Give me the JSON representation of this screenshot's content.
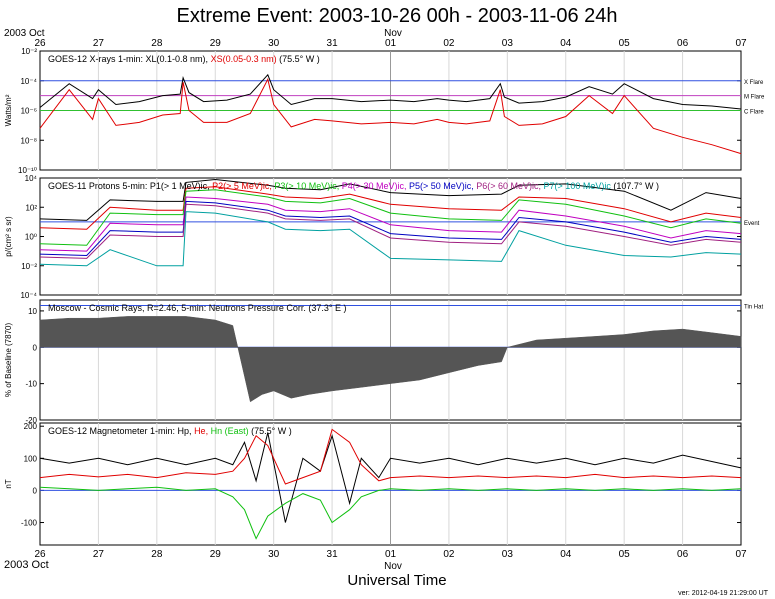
{
  "title": "Extreme Event: 2003-10-26 00h - 2003-11-06 24h",
  "top_left_label": "2003 Oct",
  "top_month_label": "Nov",
  "bottom_left_label": "2003 Oct",
  "bottom_month_label": "Nov",
  "xlabel": "Universal Time",
  "version": "ver: 2012-04-19 21:29:00 UT",
  "day_ticks": [
    "26",
    "27",
    "28",
    "29",
    "30",
    "31",
    "01",
    "02",
    "03",
    "04",
    "05",
    "06",
    "07"
  ],
  "chart_data": [
    {
      "type": "line",
      "panel": "xray",
      "title_parts": [
        {
          "text": "GOES-12 X-rays  1-min: XL(0.1-0.8 nm), ",
          "color": "#000000"
        },
        {
          "text": "XS(0.05-0.3 nm)",
          "color": "#e00000"
        },
        {
          "text": "  (75.5° W )",
          "color": "#000000"
        }
      ],
      "ylabel": "Watts/m²",
      "scale": "log",
      "ylim": [
        1e-10,
        0.01
      ],
      "yticks": [
        {
          "label": "10⁻²",
          "exp": -2
        },
        {
          "label": "10⁻⁴",
          "exp": -4
        },
        {
          "label": "10⁻⁶",
          "exp": -6
        },
        {
          "label": "10⁻⁸",
          "exp": -8
        },
        {
          "label": "10⁻¹⁰",
          "exp": -10
        }
      ],
      "thresholds": [
        {
          "label": "X Flare",
          "exp": -4,
          "color": "#3050e0"
        },
        {
          "label": "M Flare",
          "exp": -5,
          "color": "#c040c0"
        },
        {
          "label": "C Flare",
          "exp": -6,
          "color": "#30c030"
        }
      ],
      "series": [
        {
          "name": "XL",
          "color": "#000000",
          "x": [
            0,
            0.5,
            0.9,
            1.0,
            1.3,
            1.7,
            2.1,
            2.4,
            2.45,
            2.55,
            2.8,
            3.2,
            3.6,
            3.9,
            4.0,
            4.3,
            4.7,
            5.0,
            5.5,
            6.0,
            6.4,
            6.8,
            7.0,
            7.3,
            7.7,
            7.88,
            7.95,
            8.2,
            8.6,
            9.0,
            9.4,
            9.8,
            10.0,
            10.5,
            11.0,
            11.5,
            12.0
          ],
          "y": [
            -5.8,
            -4.2,
            -5.2,
            -4.6,
            -5.6,
            -5.4,
            -5.0,
            -4.9,
            -3.8,
            -4.8,
            -5.4,
            -5.3,
            -4.9,
            -3.6,
            -4.6,
            -5.6,
            -5.2,
            -5.2,
            -5.4,
            -5.3,
            -5.4,
            -5.2,
            -5.3,
            -5.4,
            -5.2,
            -4.2,
            -5.1,
            -5.5,
            -5.4,
            -5.1,
            -4.4,
            -4.9,
            -4.2,
            -5.2,
            -5.6,
            -5.7,
            -5.9
          ]
        },
        {
          "name": "XS",
          "color": "#e00000",
          "x": [
            0,
            0.5,
            0.9,
            1.0,
            1.3,
            1.7,
            2.1,
            2.4,
            2.45,
            2.55,
            2.8,
            3.2,
            3.6,
            3.9,
            4.0,
            4.3,
            4.7,
            5.0,
            5.5,
            6.0,
            6.4,
            6.8,
            7.0,
            7.3,
            7.7,
            7.88,
            7.95,
            8.2,
            8.6,
            9.0,
            9.4,
            9.8,
            10.0,
            10.5,
            11.0,
            11.5,
            12.0
          ],
          "y": [
            -7.2,
            -4.6,
            -6.6,
            -5.2,
            -7.0,
            -6.8,
            -6.3,
            -6.2,
            -4.1,
            -6.0,
            -6.8,
            -6.8,
            -6.2,
            -3.9,
            -5.6,
            -7.1,
            -6.6,
            -6.7,
            -6.9,
            -6.8,
            -6.9,
            -6.6,
            -6.8,
            -6.9,
            -6.7,
            -4.6,
            -6.4,
            -7.0,
            -6.9,
            -6.4,
            -5.0,
            -6.2,
            -5.0,
            -7.2,
            -7.8,
            -8.3,
            -8.9
          ]
        }
      ]
    },
    {
      "type": "line",
      "panel": "protons",
      "title_parts": [
        {
          "text": "GOES-11  Protons 5-min: P1(> 1 MeV)ic, ",
          "color": "#000000"
        },
        {
          "text": "P2(> 5 MeV)ic, ",
          "color": "#e00000"
        },
        {
          "text": "P3(> 10 MeV)ic, ",
          "color": "#10c010"
        },
        {
          "text": "P4(> 30 MeV)ic, ",
          "color": "#c000c0"
        },
        {
          "text": "P5(> 50 MeV)ic, ",
          "color": "#0000c0"
        },
        {
          "text": "P6(> 60 MeV)ic, ",
          "color": "#a02080"
        },
        {
          "text": "P7(> 100 MeV)ic",
          "color": "#00a0a0"
        },
        {
          "text": "  (107.7° W )",
          "color": "#000000"
        }
      ],
      "ylabel": "p/(cm² s sr)",
      "scale": "log",
      "ylim": [
        0.0001,
        10000.0
      ],
      "yticks": [
        {
          "label": "10⁴",
          "exp": 4
        },
        {
          "label": "10²",
          "exp": 2
        },
        {
          "label": "10⁰",
          "exp": 0
        },
        {
          "label": "10⁻²",
          "exp": -2
        },
        {
          "label": "10⁻⁴",
          "exp": -4
        }
      ],
      "thresholds": [
        {
          "label": "Event",
          "exp": 1,
          "color": "#3050e0"
        }
      ],
      "series": [
        {
          "name": "P1",
          "color": "#000000",
          "x": [
            0,
            0.8,
            1.2,
            2.0,
            2.45,
            2.5,
            3.0,
            3.9,
            4.2,
            4.8,
            5.3,
            6.0,
            7.0,
            7.9,
            8.2,
            9.0,
            10.0,
            10.8,
            11.4,
            12.0
          ],
          "y": [
            1.2,
            1.1,
            2.5,
            2.4,
            2.4,
            3.7,
            3.9,
            3.5,
            3.3,
            3.2,
            3.6,
            3.0,
            2.8,
            2.9,
            3.5,
            3.6,
            3.1,
            1.8,
            3.0,
            2.6
          ]
        },
        {
          "name": "P2",
          "color": "#e00000",
          "x": [
            0,
            0.8,
            1.2,
            2.0,
            2.45,
            2.5,
            3.0,
            3.9,
            4.2,
            4.8,
            5.3,
            6.0,
            7.0,
            7.9,
            8.2,
            9.0,
            10.0,
            10.8,
            11.4,
            12.0
          ],
          "y": [
            0.6,
            0.5,
            2.0,
            1.8,
            1.8,
            3.3,
            3.4,
            2.9,
            2.7,
            2.6,
            2.9,
            2.2,
            1.9,
            1.8,
            2.7,
            2.6,
            1.9,
            1.0,
            1.6,
            1.3
          ]
        },
        {
          "name": "P3",
          "color": "#10c010",
          "x": [
            0,
            0.8,
            1.2,
            2.0,
            2.45,
            2.5,
            3.0,
            3.9,
            4.2,
            4.8,
            5.3,
            6.0,
            7.0,
            7.9,
            8.2,
            9.0,
            10.0,
            10.8,
            11.4,
            12.0
          ],
          "y": [
            -0.5,
            -0.6,
            1.6,
            1.5,
            1.5,
            3.1,
            3.2,
            2.7,
            2.4,
            2.3,
            2.6,
            1.6,
            1.2,
            1.1,
            2.5,
            2.2,
            1.4,
            0.6,
            1.2,
            0.9
          ]
        },
        {
          "name": "P4",
          "color": "#c000c0",
          "x": [
            0,
            0.8,
            1.2,
            2.0,
            2.45,
            2.5,
            3.0,
            3.9,
            4.2,
            4.8,
            5.3,
            6.0,
            7.0,
            7.9,
            8.2,
            9.0,
            10.0,
            10.8,
            11.4,
            12.0
          ],
          "y": [
            -0.9,
            -1.0,
            0.9,
            0.8,
            0.8,
            2.7,
            2.6,
            2.2,
            1.8,
            1.7,
            1.9,
            0.8,
            0.4,
            0.3,
            1.8,
            1.4,
            0.7,
            -0.1,
            0.4,
            0.2
          ]
        },
        {
          "name": "P5",
          "color": "#0000c0",
          "x": [
            0,
            0.8,
            1.2,
            2.0,
            2.45,
            2.5,
            3.0,
            3.9,
            4.2,
            4.8,
            5.3,
            6.0,
            7.0,
            7.9,
            8.2,
            9.0,
            10.0,
            10.8,
            11.4,
            12.0
          ],
          "y": [
            -1.2,
            -1.3,
            0.4,
            0.3,
            0.3,
            2.4,
            2.3,
            1.8,
            1.4,
            1.3,
            1.4,
            0.2,
            -0.1,
            -0.2,
            1.3,
            1.0,
            0.3,
            -0.4,
            0.0,
            -0.2
          ]
        },
        {
          "name": "P6",
          "color": "#a02080",
          "x": [
            0,
            0.8,
            1.2,
            2.0,
            2.45,
            2.5,
            3.0,
            3.9,
            4.2,
            4.8,
            5.3,
            6.0,
            7.0,
            7.9,
            8.2,
            9.0,
            10.0,
            10.8,
            11.4,
            12.0
          ],
          "y": [
            -1.4,
            -1.5,
            0.1,
            0.0,
            0.0,
            2.2,
            2.1,
            1.6,
            1.2,
            1.1,
            1.2,
            -0.1,
            -0.4,
            -0.5,
            1.0,
            0.7,
            0.0,
            -0.6,
            -0.2,
            -0.4
          ]
        },
        {
          "name": "P7",
          "color": "#00a0a0",
          "x": [
            0,
            0.8,
            1.2,
            2.0,
            2.45,
            2.5,
            3.0,
            3.9,
            4.2,
            4.8,
            5.3,
            6.0,
            7.0,
            7.9,
            8.2,
            9.0,
            10.0,
            10.8,
            11.4,
            12.0
          ],
          "y": [
            -1.9,
            -2.0,
            -0.9,
            -2.0,
            -2.0,
            1.7,
            1.6,
            1.0,
            0.5,
            0.4,
            0.5,
            -1.5,
            -1.6,
            -1.7,
            0.4,
            -0.6,
            -1.3,
            -1.4,
            -1.1,
            -1.2
          ]
        }
      ]
    },
    {
      "type": "area",
      "panel": "cosmic",
      "title_parts": [
        {
          "text": "Moscow - Cosmic Rays, R=2.46,  5-min: Neutrons Pressure Corr.  (37.3° E )",
          "color": "#000000"
        }
      ],
      "ylabel": "% of Baseline (7870)",
      "scale": "linear",
      "ylim": [
        -20,
        13
      ],
      "yticks": [
        10,
        0,
        -10,
        -20
      ],
      "thresholds": [
        {
          "label": "Tin Hat",
          "value": 11.5,
          "color": "#3050e0"
        }
      ],
      "series": [
        {
          "name": "Neutrons",
          "color": "#555555",
          "x": [
            0,
            0.5,
            1.0,
            1.5,
            2.0,
            2.5,
            3.0,
            3.3,
            3.5,
            3.6,
            3.8,
            4.0,
            4.3,
            4.6,
            5.0,
            5.5,
            6.0,
            6.5,
            7.0,
            7.5,
            7.9,
            8.0,
            8.5,
            9.0,
            9.5,
            10.0,
            10.5,
            11.0,
            11.5,
            12.0
          ],
          "y": [
            7.5,
            8.0,
            8.0,
            8.5,
            8.5,
            8.5,
            7.5,
            6.0,
            -8.0,
            -15.0,
            -13.0,
            -12.0,
            -14.0,
            -13.0,
            -12.0,
            -11.0,
            -10.0,
            -9.0,
            -7.0,
            -5.0,
            -4.0,
            0.0,
            2.0,
            2.5,
            3.0,
            3.5,
            4.5,
            5.0,
            4.0,
            3.0
          ]
        }
      ]
    },
    {
      "type": "line",
      "panel": "magnetometer",
      "title_parts": [
        {
          "text": "GOES-12 Magnetometer  1-min: Hp, ",
          "color": "#000000"
        },
        {
          "text": "He, ",
          "color": "#e00000"
        },
        {
          "text": "Hn (East)",
          "color": "#10c010"
        },
        {
          "text": "  (75.5° W )",
          "color": "#000000"
        }
      ],
      "ylabel": "nT",
      "scale": "linear",
      "ylim": [
        -170,
        210
      ],
      "yticks": [
        200,
        100,
        0,
        -100
      ],
      "series": [
        {
          "name": "Hp",
          "color": "#000000",
          "x": [
            0,
            0.5,
            1.0,
            1.5,
            2.0,
            2.5,
            3.0,
            3.3,
            3.5,
            3.7,
            3.9,
            4.2,
            4.5,
            4.8,
            5.0,
            5.3,
            5.5,
            5.8,
            6.0,
            6.5,
            7.0,
            7.5,
            8.0,
            8.5,
            9.0,
            9.5,
            10.0,
            10.5,
            11.0,
            11.5,
            12.0
          ],
          "y": [
            100,
            85,
            100,
            80,
            100,
            80,
            100,
            80,
            150,
            30,
            180,
            -100,
            100,
            60,
            170,
            -40,
            100,
            40,
            100,
            85,
            100,
            80,
            100,
            85,
            100,
            80,
            100,
            85,
            110,
            90,
            70
          ]
        },
        {
          "name": "He",
          "color": "#e00000",
          "x": [
            0,
            0.5,
            1.0,
            1.5,
            2.0,
            2.5,
            3.0,
            3.3,
            3.5,
            3.7,
            3.9,
            4.2,
            4.5,
            4.8,
            5.0,
            5.3,
            5.5,
            5.8,
            6.0,
            6.5,
            7.0,
            7.5,
            8.0,
            8.5,
            9.0,
            9.5,
            10.0,
            10.5,
            11.0,
            11.5,
            12.0
          ],
          "y": [
            40,
            50,
            42,
            50,
            40,
            55,
            50,
            60,
            100,
            170,
            140,
            20,
            40,
            60,
            190,
            150,
            80,
            30,
            40,
            45,
            40,
            45,
            40,
            45,
            40,
            50,
            40,
            45,
            40,
            45,
            40
          ]
        },
        {
          "name": "Hn",
          "color": "#10c010",
          "x": [
            0,
            0.5,
            1.0,
            1.5,
            2.0,
            2.5,
            3.0,
            3.3,
            3.5,
            3.7,
            3.9,
            4.2,
            4.5,
            4.8,
            5.0,
            5.3,
            5.5,
            5.8,
            6.0,
            6.5,
            7.0,
            7.5,
            8.0,
            8.5,
            9.0,
            9.5,
            10.0,
            10.5,
            11.0,
            11.5,
            12.0
          ],
          "y": [
            10,
            5,
            0,
            5,
            10,
            0,
            5,
            -20,
            -60,
            -150,
            -80,
            -40,
            -10,
            -30,
            -100,
            -60,
            -20,
            0,
            5,
            0,
            5,
            0,
            5,
            0,
            5,
            0,
            5,
            0,
            5,
            0,
            5
          ]
        }
      ]
    }
  ]
}
